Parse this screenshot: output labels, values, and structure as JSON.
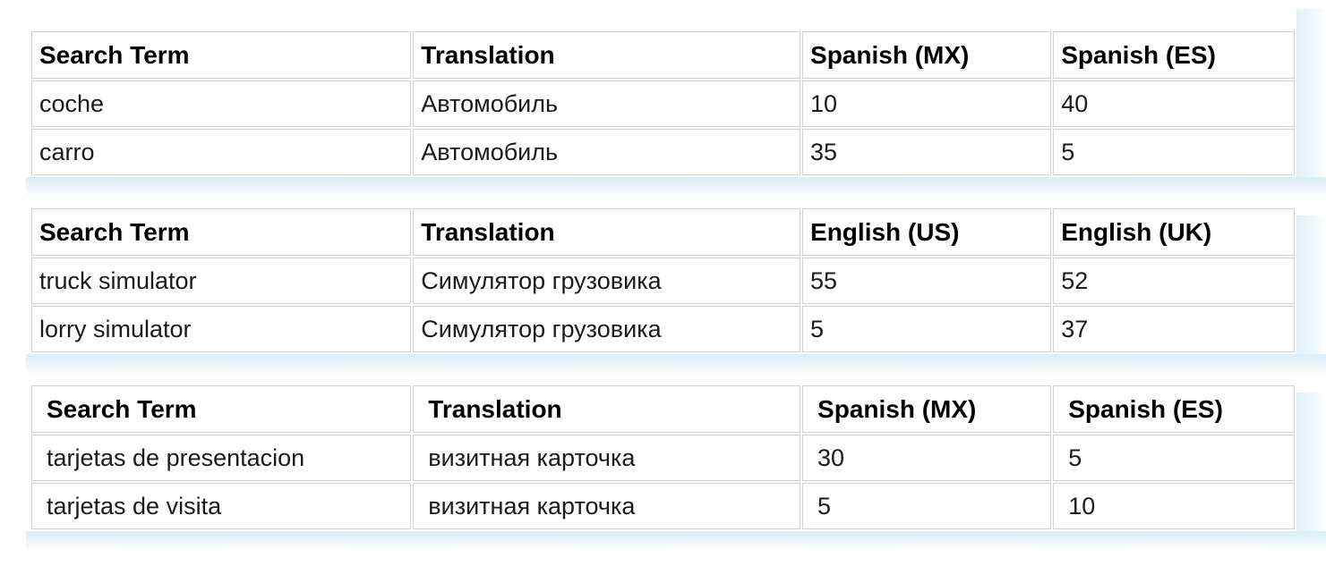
{
  "styles": {
    "glow_color": "#d9edf8",
    "cell_border_color": "#d2d2d2",
    "header_text_color": "#000000",
    "body_text_color": "#1b1b1b",
    "table_background": "#ffffff"
  },
  "tables": [
    {
      "columns": [
        "Search Term",
        "Translation",
        "Spanish (MX)",
        "Spanish (ES)"
      ],
      "rows": [
        [
          "coche",
          "Автомобиль",
          "10",
          "40"
        ],
        [
          "carro",
          "Автомобиль",
          "35",
          "5"
        ]
      ]
    },
    {
      "columns": [
        "Search Term",
        "Translation",
        "English (US)",
        "English (UK)"
      ],
      "rows": [
        [
          "truck simulator",
          "Симулятор грузовика",
          "55",
          "52"
        ],
        [
          "lorry simulator",
          "Симулятор грузовика",
          "5",
          "37"
        ]
      ]
    },
    {
      "columns": [
        "Search Term",
        "Translation",
        "Spanish (MX)",
        "Spanish (ES)"
      ],
      "rows": [
        [
          "tarjetas de presentacion",
          "визитная карточка",
          "30",
          "5"
        ],
        [
          "tarjetas de visita",
          "визитная карточка",
          "5",
          "10"
        ]
      ]
    }
  ]
}
